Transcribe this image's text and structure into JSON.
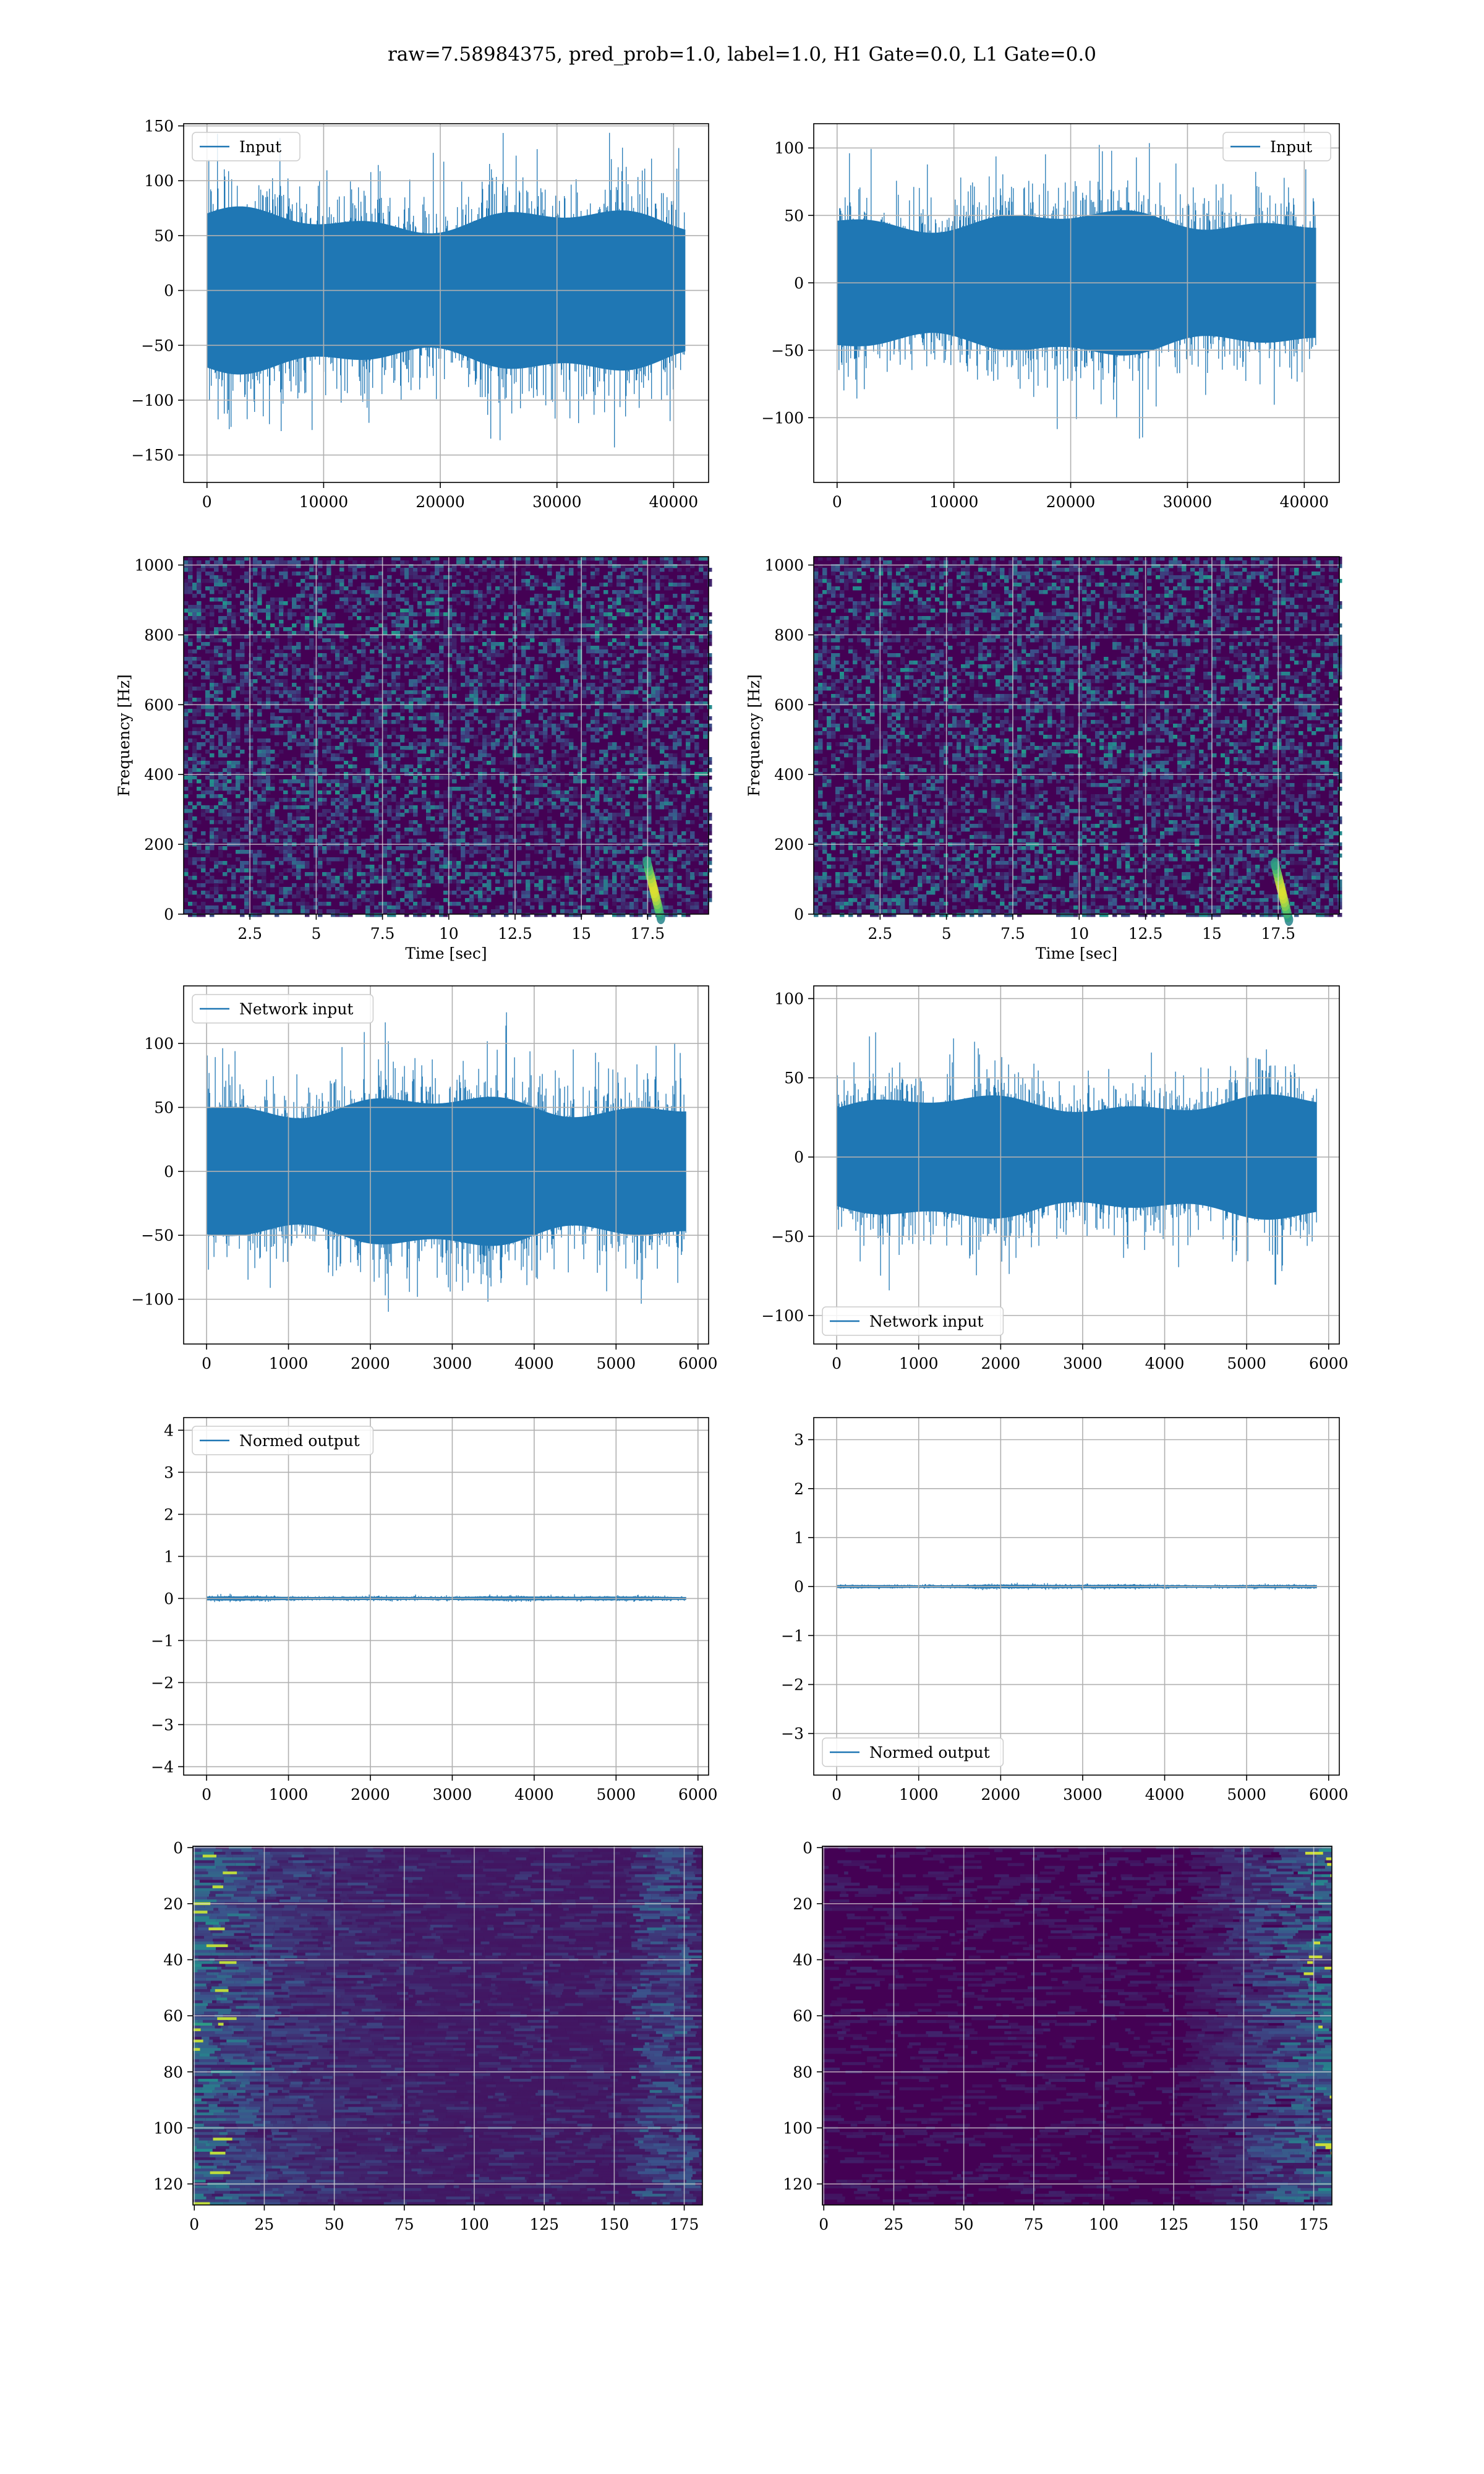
{
  "figure": {
    "title": "raw=7.58984375, pred_prob=1.0, label=1.0, H1 Gate=0.0, L1 Gate=0.0"
  },
  "colors": {
    "line": "#1f77b4",
    "grid": "#b0b0b0",
    "viridis": [
      "#440154",
      "#3b528b",
      "#21918c",
      "#5ec962",
      "#fde725"
    ]
  },
  "chart_data": [
    {
      "id": "p1",
      "type": "line",
      "series": [
        {
          "name": "Input",
          "kind": "noise",
          "n": 40960,
          "amp": 0.45
        }
      ],
      "x": [
        0,
        40960
      ],
      "xlim": [
        -2000,
        43000
      ],
      "ylim": [
        -175,
        152
      ],
      "xticks": [
        0,
        10000,
        20000,
        30000,
        40000
      ],
      "yticks": [
        -150,
        -100,
        -50,
        0,
        50,
        100,
        150
      ],
      "legend": "top-left",
      "grid": true,
      "xlabel": "",
      "ylabel": ""
    },
    {
      "id": "p2",
      "type": "line",
      "series": [
        {
          "name": "Input",
          "kind": "noise",
          "n": 40960,
          "amp": 0.4
        }
      ],
      "x": [
        0,
        40960
      ],
      "xlim": [
        -2000,
        43000
      ],
      "ylim": [
        -148,
        118
      ],
      "xticks": [
        0,
        10000,
        20000,
        30000,
        40000
      ],
      "yticks": [
        -100,
        -50,
        0,
        50,
        100
      ],
      "legend": "top-right",
      "grid": true,
      "xlabel": "",
      "ylabel": ""
    },
    {
      "id": "p3",
      "type": "heatmap",
      "kind": "spectrogram",
      "hotspot": [
        18.0,
        60
      ],
      "xlim": [
        0,
        19.8
      ],
      "ylim": [
        0,
        1024
      ],
      "xticks": [
        2.5,
        5.0,
        7.5,
        10.0,
        12.5,
        15.0,
        17.5
      ],
      "yticks": [
        0,
        200,
        400,
        600,
        800,
        1000
      ],
      "grid": true,
      "xlabel": "Time [sec]",
      "ylabel": "Frequency [Hz]"
    },
    {
      "id": "p4",
      "type": "heatmap",
      "kind": "spectrogram",
      "hotspot": [
        17.9,
        55
      ],
      "xlim": [
        0,
        19.8
      ],
      "ylim": [
        0,
        1024
      ],
      "xticks": [
        2.5,
        5.0,
        7.5,
        10.0,
        12.5,
        15.0,
        17.5
      ],
      "yticks": [
        0,
        200,
        400,
        600,
        800,
        1000
      ],
      "grid": true,
      "xlabel": "Time [sec]",
      "ylabel": "Frequency [Hz]"
    },
    {
      "id": "p5",
      "type": "line",
      "series": [
        {
          "name": "Network input",
          "kind": "noise",
          "n": 5850,
          "amp": 0.42
        }
      ],
      "x": [
        0,
        5850
      ],
      "xlim": [
        -280,
        6130
      ],
      "ylim": [
        -135,
        145
      ],
      "xticks": [
        0,
        1000,
        2000,
        3000,
        4000,
        5000,
        6000
      ],
      "yticks": [
        -100,
        -50,
        0,
        50,
        100
      ],
      "legend": "top-left",
      "grid": true,
      "xlabel": "",
      "ylabel": ""
    },
    {
      "id": "p6",
      "type": "line",
      "series": [
        {
          "name": "Network input",
          "kind": "noise",
          "n": 5850,
          "amp": 0.34
        }
      ],
      "x": [
        0,
        5850
      ],
      "xlim": [
        -280,
        6130
      ],
      "ylim": [
        -118,
        108
      ],
      "xticks": [
        0,
        1000,
        2000,
        3000,
        4000,
        5000,
        6000
      ],
      "yticks": [
        -100,
        -50,
        0,
        50,
        100
      ],
      "legend": "bottom-left",
      "grid": true,
      "xlabel": "",
      "ylabel": ""
    },
    {
      "id": "p7",
      "type": "line",
      "series": [
        {
          "name": "Normed output",
          "kind": "noise",
          "n": 5850,
          "amp": 0.011
        }
      ],
      "x": [
        0,
        5850
      ],
      "xlim": [
        -280,
        6130
      ],
      "ylim": [
        -4.2,
        4.3
      ],
      "xticks": [
        0,
        1000,
        2000,
        3000,
        4000,
        5000,
        6000
      ],
      "yticks": [
        -4,
        -3,
        -2,
        -1,
        0,
        1,
        2,
        3,
        4
      ],
      "legend": "top-left",
      "grid": true,
      "xlabel": "",
      "ylabel": ""
    },
    {
      "id": "p8",
      "type": "line",
      "series": [
        {
          "name": "Normed output",
          "kind": "noise",
          "n": 5850,
          "amp": 0.01
        }
      ],
      "x": [
        0,
        5850
      ],
      "xlim": [
        -280,
        6130
      ],
      "ylim": [
        -3.85,
        3.45
      ],
      "xticks": [
        0,
        1000,
        2000,
        3000,
        4000,
        5000,
        6000
      ],
      "yticks": [
        -3,
        -2,
        -1,
        0,
        1,
        2,
        3
      ],
      "legend": "bottom-left",
      "grid": true,
      "xlabel": "",
      "ylabel": ""
    },
    {
      "id": "p9",
      "type": "heatmap",
      "kind": "feature-left",
      "xlim": [
        -0.5,
        181.5
      ],
      "ylim": [
        127.5,
        -0.5
      ],
      "xticks": [
        0,
        25,
        50,
        75,
        100,
        125,
        150,
        175
      ],
      "yticks": [
        0,
        20,
        40,
        60,
        80,
        100,
        120
      ],
      "grid": true,
      "xlabel": "",
      "ylabel": ""
    },
    {
      "id": "p10",
      "type": "heatmap",
      "kind": "feature-right",
      "xlim": [
        -0.5,
        181.5
      ],
      "ylim": [
        127.5,
        -0.5
      ],
      "xticks": [
        0,
        25,
        50,
        75,
        100,
        125,
        150,
        175
      ],
      "yticks": [
        0,
        20,
        40,
        60,
        80,
        100,
        120
      ],
      "grid": true,
      "xlabel": "",
      "ylabel": ""
    }
  ]
}
